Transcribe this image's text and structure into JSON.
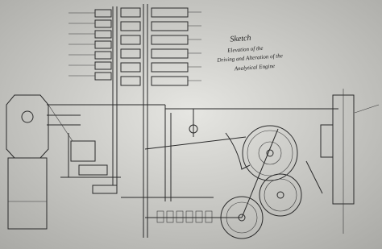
{
  "title_block": {
    "lines": [
      "Sketch",
      "Elevation of the",
      "Driving and Alteration of the",
      "Analytical Engine"
    ]
  }
}
